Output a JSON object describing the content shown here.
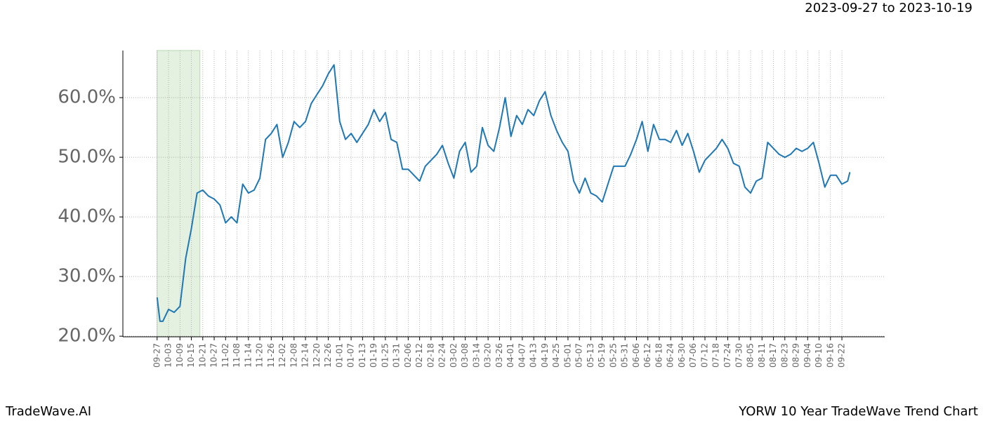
{
  "chart_data": {
    "type": "line",
    "date_range": "2023-09-27 to 2023-10-19",
    "brand": "TradeWave.AI",
    "title": "YORW 10 Year TradeWave Trend Chart",
    "shaded_range": [
      0,
      3.75
    ],
    "shade_color": "#e4f1e1",
    "grid": true,
    "xlim": [
      -3,
      63.75
    ],
    "ylim": [
      19.9,
      67.9
    ],
    "yticks": [
      {
        "value": 20,
        "label": "20.0%"
      },
      {
        "value": 30,
        "label": "30.0%"
      },
      {
        "value": 40,
        "label": "40.0%"
      },
      {
        "value": 50,
        "label": "50.0%"
      },
      {
        "value": 60,
        "label": "60.0%"
      }
    ],
    "xticks": [
      {
        "value": 0,
        "label": "09-27"
      },
      {
        "value": 1,
        "label": "10-03"
      },
      {
        "value": 2,
        "label": "10-09"
      },
      {
        "value": 3,
        "label": "10-15"
      },
      {
        "value": 4,
        "label": "10-21"
      },
      {
        "value": 5,
        "label": "10-27"
      },
      {
        "value": 6,
        "label": "11-02"
      },
      {
        "value": 7,
        "label": "11-08"
      },
      {
        "value": 8,
        "label": "11-14"
      },
      {
        "value": 9,
        "label": "11-20"
      },
      {
        "value": 10,
        "label": "11-26"
      },
      {
        "value": 11,
        "label": "12-02"
      },
      {
        "value": 12,
        "label": "12-08"
      },
      {
        "value": 13,
        "label": "12-14"
      },
      {
        "value": 14,
        "label": "12-20"
      },
      {
        "value": 15,
        "label": "12-26"
      },
      {
        "value": 16,
        "label": "01-01"
      },
      {
        "value": 17,
        "label": "01-07"
      },
      {
        "value": 18,
        "label": "01-13"
      },
      {
        "value": 19,
        "label": "01-19"
      },
      {
        "value": 20,
        "label": "01-25"
      },
      {
        "value": 21,
        "label": "01-31"
      },
      {
        "value": 22,
        "label": "02-06"
      },
      {
        "value": 23,
        "label": "02-12"
      },
      {
        "value": 24,
        "label": "02-18"
      },
      {
        "value": 25,
        "label": "02-24"
      },
      {
        "value": 26,
        "label": "03-02"
      },
      {
        "value": 27,
        "label": "03-08"
      },
      {
        "value": 28,
        "label": "03-14"
      },
      {
        "value": 29,
        "label": "03-20"
      },
      {
        "value": 30,
        "label": "03-26"
      },
      {
        "value": 31,
        "label": "04-01"
      },
      {
        "value": 32,
        "label": "04-07"
      },
      {
        "value": 33,
        "label": "04-13"
      },
      {
        "value": 34,
        "label": "04-19"
      },
      {
        "value": 35,
        "label": "04-25"
      },
      {
        "value": 36,
        "label": "05-01"
      },
      {
        "value": 37,
        "label": "05-07"
      },
      {
        "value": 38,
        "label": "05-13"
      },
      {
        "value": 39,
        "label": "05-19"
      },
      {
        "value": 40,
        "label": "05-25"
      },
      {
        "value": 41,
        "label": "05-31"
      },
      {
        "value": 42,
        "label": "06-06"
      },
      {
        "value": 43,
        "label": "06-12"
      },
      {
        "value": 44,
        "label": "06-18"
      },
      {
        "value": 45,
        "label": "06-24"
      },
      {
        "value": 46,
        "label": "06-30"
      },
      {
        "value": 47,
        "label": "07-06"
      },
      {
        "value": 48,
        "label": "07-12"
      },
      {
        "value": 49,
        "label": "07-18"
      },
      {
        "value": 50,
        "label": "07-24"
      },
      {
        "value": 51,
        "label": "07-30"
      },
      {
        "value": 52,
        "label": "08-05"
      },
      {
        "value": 53,
        "label": "08-11"
      },
      {
        "value": 54,
        "label": "08-17"
      },
      {
        "value": 55,
        "label": "08-23"
      },
      {
        "value": 56,
        "label": "08-29"
      },
      {
        "value": 57,
        "label": "09-04"
      },
      {
        "value": 58,
        "label": "09-10"
      },
      {
        "value": 59,
        "label": "09-16"
      },
      {
        "value": 60,
        "label": "09-22"
      }
    ],
    "x": [
      0,
      0.25,
      0.5,
      1,
      1.5,
      2,
      2.5,
      3,
      3.5,
      4,
      4.5,
      5,
      5.5,
      6,
      6.5,
      7,
      7.5,
      8,
      8.5,
      9,
      9.5,
      10,
      10.5,
      11,
      11.5,
      12,
      12.5,
      13,
      13.5,
      14,
      14.5,
      15,
      15.5,
      16,
      16.5,
      17,
      17.5,
      18,
      18.5,
      19,
      19.5,
      20,
      20.5,
      21,
      21.5,
      22,
      22.5,
      23,
      23.5,
      24,
      24.5,
      25,
      25.5,
      26,
      26.5,
      27,
      27.5,
      28,
      28.5,
      29,
      29.5,
      30,
      30.5,
      31,
      31.5,
      32,
      32.5,
      33,
      33.5,
      34,
      34.5,
      35,
      35.5,
      36,
      36.5,
      37,
      37.5,
      38,
      38.5,
      39,
      39.5,
      40,
      40.5,
      41,
      41.5,
      42,
      42.5,
      43,
      43.5,
      44,
      44.5,
      45,
      45.5,
      46,
      46.5,
      47,
      47.5,
      48,
      48.5,
      49,
      49.5,
      50,
      50.5,
      51,
      51.5,
      52,
      52.5,
      53,
      53.5,
      54,
      54.5,
      55,
      55.5,
      56,
      56.5,
      57,
      57.5,
      58,
      58.5,
      59,
      59.5,
      60,
      60.5,
      60.7
    ],
    "color": "#1f77b4",
    "values": [
      26.5,
      22.5,
      22.5,
      24.5,
      24,
      25,
      33,
      38,
      44,
      44.5,
      43.5,
      43,
      42,
      39,
      40,
      39,
      45.5,
      44,
      44.5,
      46.5,
      53,
      54,
      55.5,
      50,
      52.5,
      56,
      55,
      56,
      59,
      60.5,
      62,
      64,
      65.5,
      56,
      53,
      54,
      52.5,
      54,
      55.5,
      58,
      56,
      57.5,
      53,
      52.5,
      48,
      48,
      47,
      46,
      48.5,
      49.5,
      50.5,
      52,
      49,
      46.5,
      51,
      52.5,
      47.5,
      48.5,
      55,
      52,
      51,
      55,
      60,
      53.5,
      57,
      55.5,
      58,
      57,
      59.5,
      61,
      57,
      54.5,
      52.5,
      51,
      46,
      44,
      46.5,
      44,
      43.5,
      42.5,
      45.5,
      48.5,
      48.5,
      48.5,
      50.5,
      53,
      56,
      51,
      55.5,
      53,
      53,
      52.5,
      54.5,
      52,
      54,
      51,
      47.5,
      49.5,
      50.5,
      51.5,
      53,
      51.5,
      49,
      48.5,
      45,
      44,
      46,
      46.5,
      52.5,
      51.5,
      50.5,
      50,
      50.5,
      51.5,
      51,
      51.5,
      52.5,
      49,
      45,
      47,
      47,
      45.5,
      46,
      47.5
    ]
  }
}
